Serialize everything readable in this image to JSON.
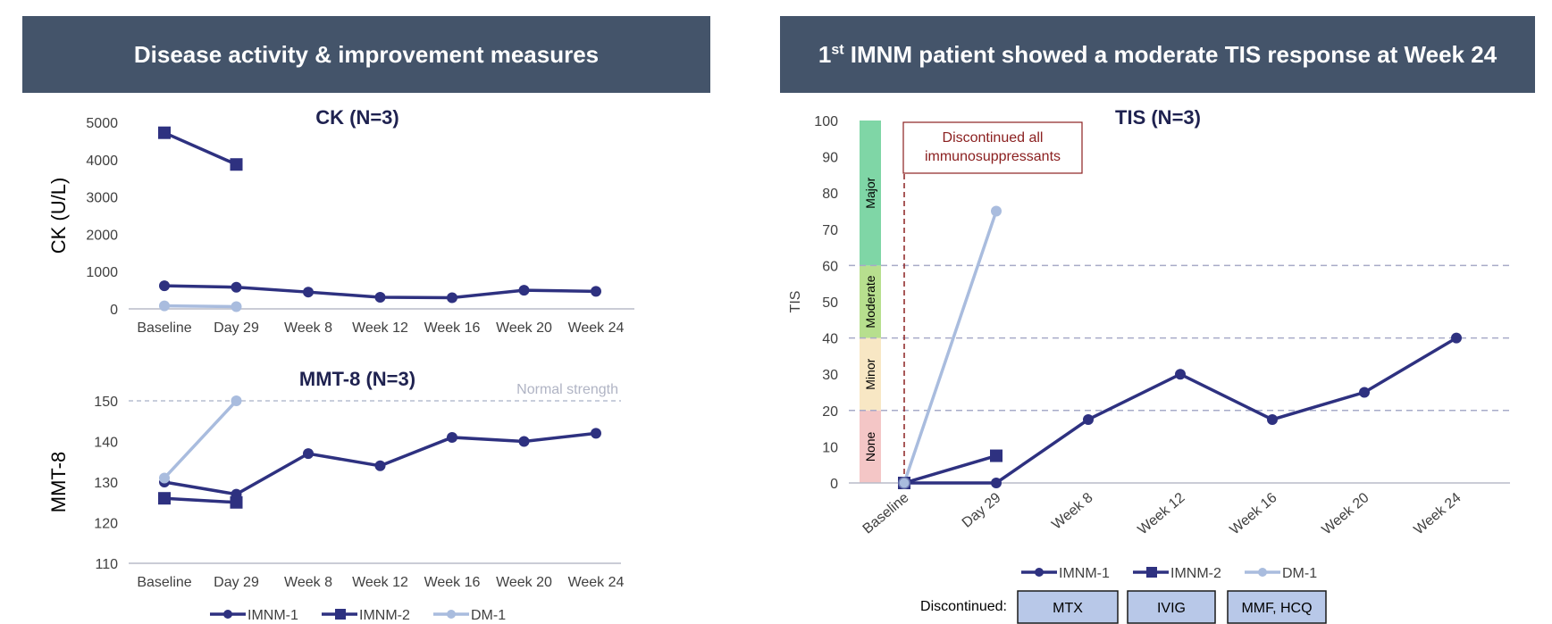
{
  "banners": {
    "left": "Disease activity & improvement measures",
    "right_sup": "st",
    "right_prefix": "1",
    "right_rest": " IMNM patient showed a moderate TIS response at Week 24"
  },
  "colors": {
    "imnm1": "#2e3180",
    "imnm2": "#2e3180",
    "dm1": "#a9bcde",
    "banner": "#44546a"
  },
  "legend": [
    "IMNM-1",
    "IMNM-2",
    "DM-1"
  ],
  "chart_data": [
    {
      "type": "line",
      "title": "CK (N=3)",
      "ylabel": "CK (U/L)",
      "categories": [
        "Baseline",
        "Day 29",
        "Week 8",
        "Week 12",
        "Week 16",
        "Week 20",
        "Week 24"
      ],
      "ylim": [
        0,
        5000
      ],
      "yticks": [
        0,
        1000,
        2000,
        3000,
        4000,
        5000
      ],
      "series": [
        {
          "name": "IMNM-1",
          "marker": "circle",
          "values": [
            620,
            580,
            450,
            310,
            300,
            500,
            470
          ]
        },
        {
          "name": "IMNM-2",
          "marker": "square",
          "values": [
            4720,
            3870,
            null,
            null,
            null,
            null,
            null
          ]
        },
        {
          "name": "DM-1",
          "marker": "circle",
          "values": [
            80,
            60,
            null,
            null,
            null,
            null,
            null
          ]
        }
      ]
    },
    {
      "type": "line",
      "title": "MMT-8 (N=3)",
      "ylabel": "MMT-8",
      "categories": [
        "Baseline",
        "Day 29",
        "Week 8",
        "Week 12",
        "Week 16",
        "Week 20",
        "Week 24"
      ],
      "ylim": [
        110,
        150
      ],
      "yticks": [
        110,
        120,
        130,
        140,
        150
      ],
      "reference_line": {
        "value": 150,
        "label": "Normal strength"
      },
      "series": [
        {
          "name": "IMNM-1",
          "marker": "circle",
          "values": [
            130,
            127,
            137,
            134,
            141,
            140,
            142
          ]
        },
        {
          "name": "IMNM-2",
          "marker": "square",
          "values": [
            126,
            125,
            null,
            null,
            null,
            null,
            null
          ]
        },
        {
          "name": "DM-1",
          "marker": "circle",
          "values": [
            131,
            150,
            null,
            null,
            null,
            null,
            null
          ]
        }
      ]
    },
    {
      "type": "line",
      "title": "TIS (N=3)",
      "ylabel": "TIS",
      "categories": [
        "Baseline",
        "Day 29",
        "Week 8",
        "Week 12",
        "Week 16",
        "Week 20",
        "Week 24"
      ],
      "ylim": [
        0,
        100
      ],
      "yticks": [
        0,
        10,
        20,
        30,
        40,
        50,
        60,
        70,
        80,
        90,
        100
      ],
      "bands": [
        {
          "label": "None",
          "from": 0,
          "to": 20,
          "color": "#f4c6c6"
        },
        {
          "label": "Minor",
          "from": 20,
          "to": 40,
          "color": "#f8e7c4"
        },
        {
          "label": "Moderate",
          "from": 40,
          "to": 60,
          "color": "#b7df8e"
        },
        {
          "label": "Major",
          "from": 60,
          "to": 100,
          "color": "#7fd6a6"
        }
      ],
      "threshold_lines": [
        20,
        40,
        60
      ],
      "annotation": {
        "text_line1": "Discontinued all",
        "text_line2": "immunosuppressants",
        "at": "Baseline"
      },
      "series": [
        {
          "name": "IMNM-1",
          "marker": "circle",
          "values": [
            0,
            0,
            17.5,
            30,
            17.5,
            25,
            40
          ]
        },
        {
          "name": "IMNM-2",
          "marker": "square",
          "values": [
            0,
            7.5,
            null,
            null,
            null,
            null,
            null
          ]
        },
        {
          "name": "DM-1",
          "marker": "circle",
          "values": [
            0,
            75,
            null,
            null,
            null,
            null,
            null
          ]
        }
      ],
      "discontinued": {
        "label": "Discontinued:",
        "items": [
          "MTX",
          "IVIG",
          "MMF, HCQ"
        ]
      }
    }
  ]
}
